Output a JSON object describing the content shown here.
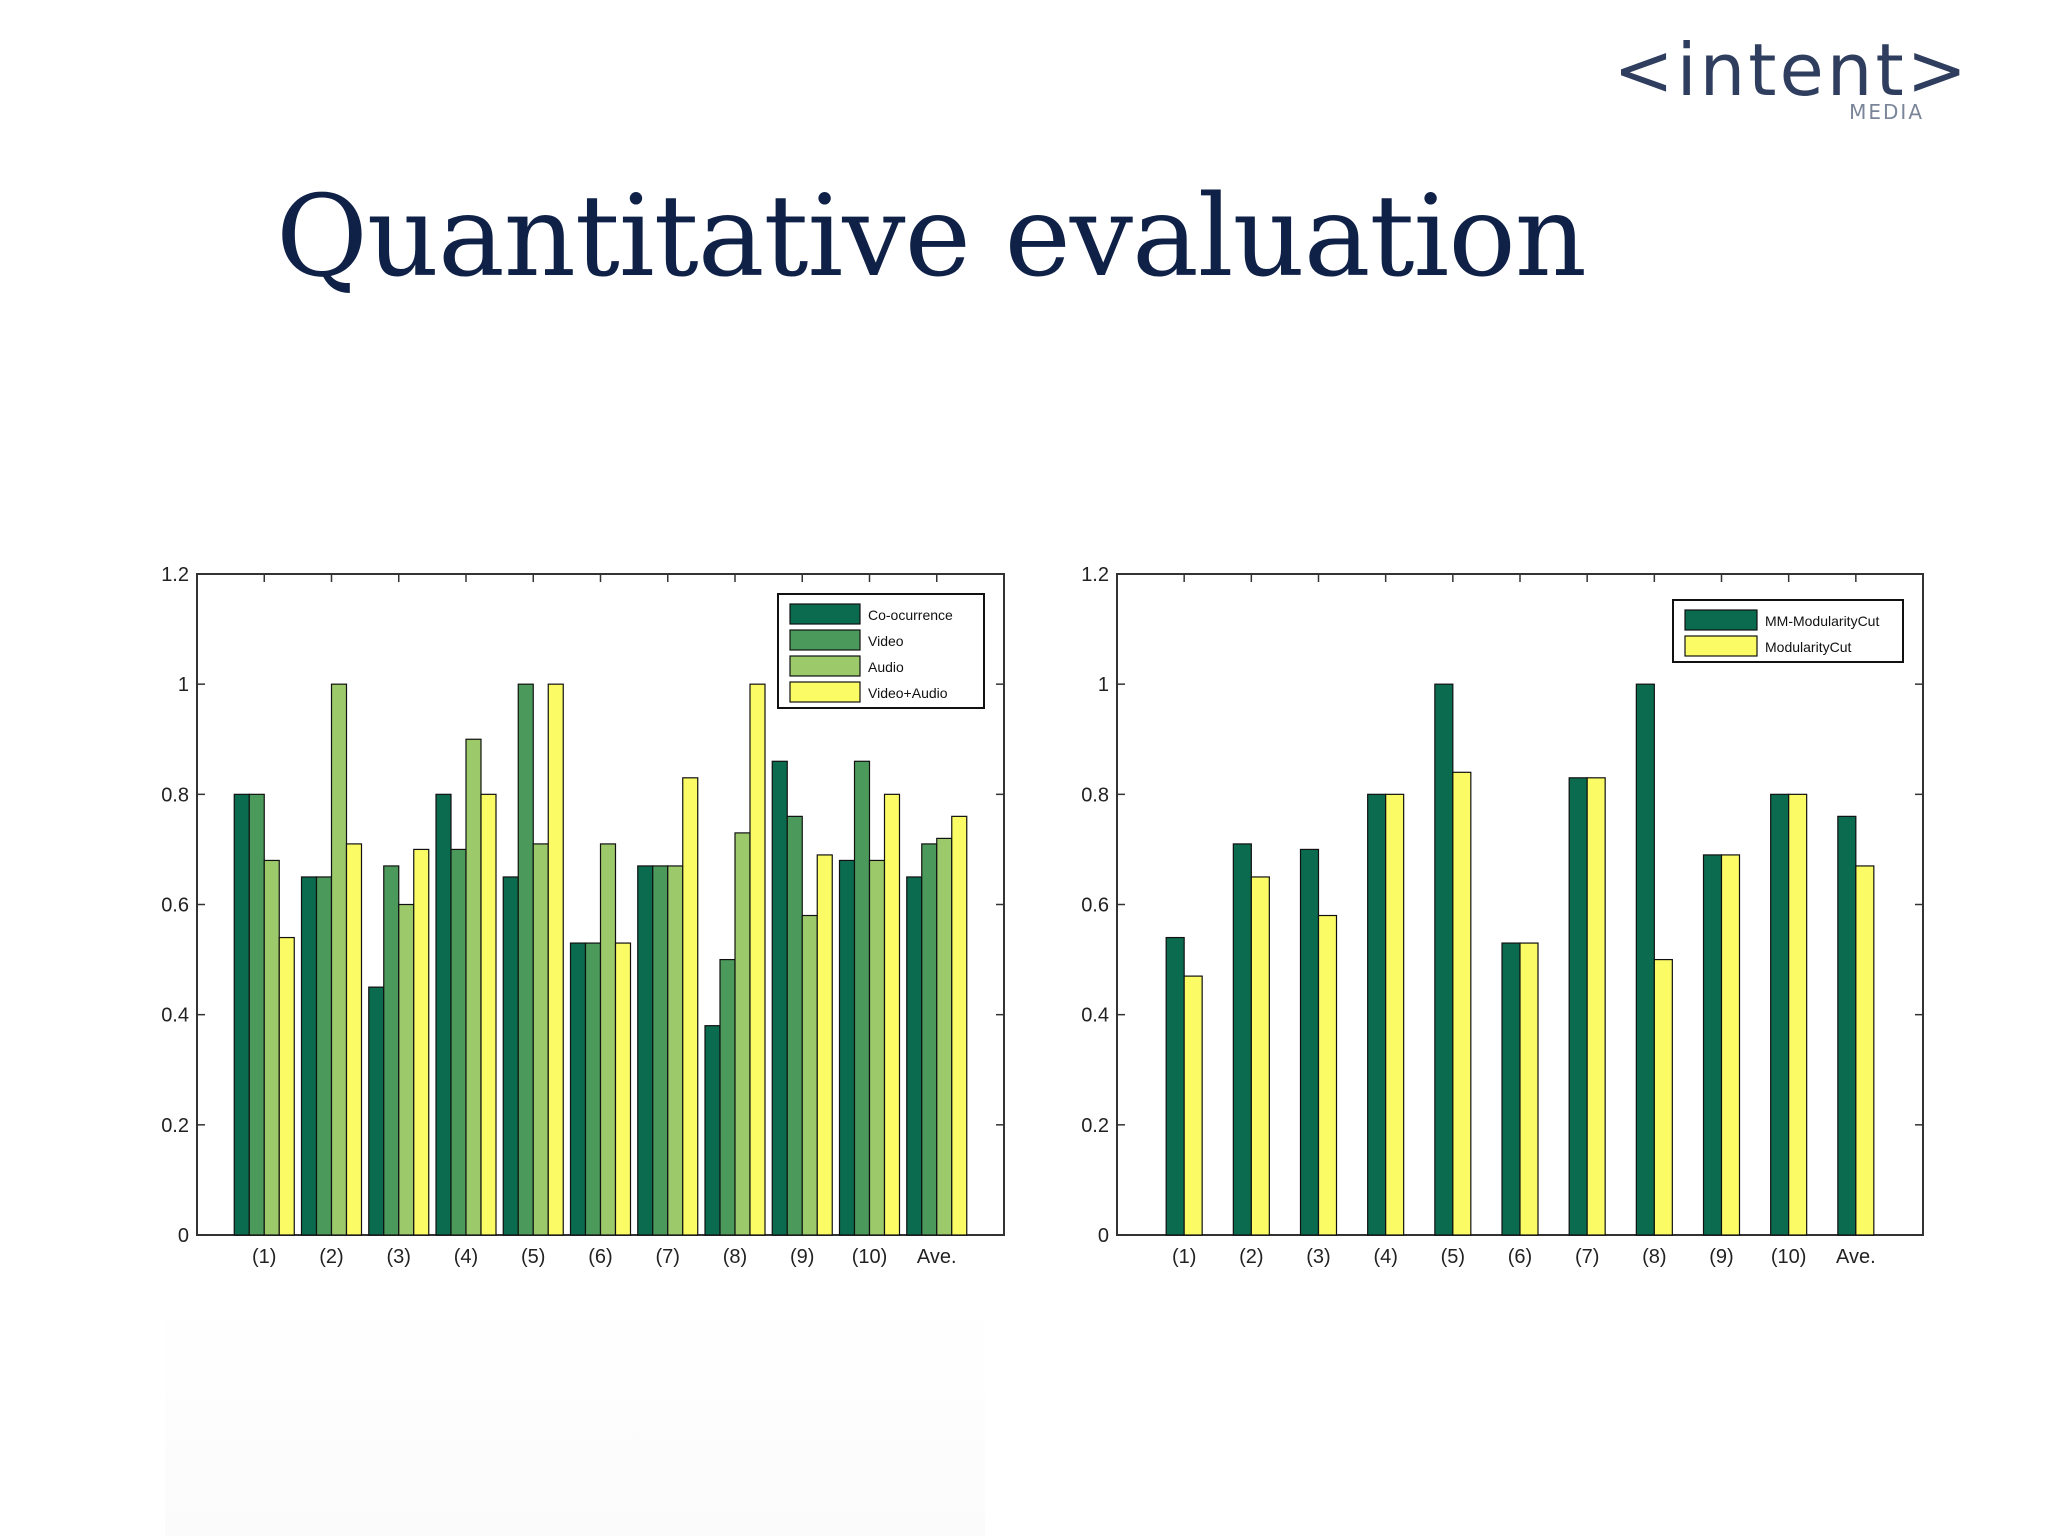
{
  "slide": {
    "title": "Quantitative evaluation"
  },
  "logo": {
    "word": "<intent>",
    "sub": "MEDIA"
  },
  "colors": {
    "co_occurrence": "#0b6b4f",
    "video": "#4b9a5b",
    "audio": "#9cc96a",
    "video_audio": "#fbfb66",
    "mm_modularity": "#0b6b4f",
    "modularity": "#fbfb66"
  },
  "chart_data": [
    {
      "type": "bar",
      "title": "",
      "xlabel": "",
      "ylabel": "",
      "ylim": [
        0,
        1.2
      ],
      "yticks": [
        "0",
        "0.2",
        "0.4",
        "0.6",
        "0.8",
        "1",
        "1.2"
      ],
      "categories": [
        "(1)",
        "(2)",
        "(3)",
        "(4)",
        "(5)",
        "(6)",
        "(7)",
        "(8)",
        "(9)",
        "(10)",
        "Ave."
      ],
      "legend_position": "top-right",
      "series": [
        {
          "name": "Co-ocurrence",
          "color": "#0b6b4f",
          "values": [
            0.8,
            0.65,
            0.45,
            0.8,
            0.65,
            0.53,
            0.67,
            0.38,
            0.86,
            0.68,
            0.65
          ]
        },
        {
          "name": "Video",
          "color": "#4b9a5b",
          "values": [
            0.8,
            0.65,
            0.67,
            0.7,
            1.0,
            0.53,
            0.67,
            0.5,
            0.76,
            0.86,
            0.71
          ]
        },
        {
          "name": "Audio",
          "color": "#9cc96a",
          "values": [
            0.68,
            1.0,
            0.6,
            0.9,
            0.71,
            0.71,
            0.67,
            0.73,
            0.58,
            0.68,
            0.72
          ]
        },
        {
          "name": "Video+Audio",
          "color": "#fbfb66",
          "values": [
            0.54,
            0.71,
            0.7,
            0.8,
            1.0,
            0.53,
            0.83,
            1.0,
            0.69,
            0.8,
            0.76
          ]
        }
      ]
    },
    {
      "type": "bar",
      "title": "",
      "xlabel": "",
      "ylabel": "",
      "ylim": [
        0,
        1.2
      ],
      "yticks": [
        "0",
        "0.2",
        "0.4",
        "0.6",
        "0.8",
        "1",
        "1.2"
      ],
      "categories": [
        "(1)",
        "(2)",
        "(3)",
        "(4)",
        "(5)",
        "(6)",
        "(7)",
        "(8)",
        "(9)",
        "(10)",
        "Ave."
      ],
      "legend_position": "top-right",
      "series": [
        {
          "name": "MM-ModularityCut",
          "color": "#0b6b4f",
          "values": [
            0.54,
            0.71,
            0.7,
            0.8,
            1.0,
            0.53,
            0.83,
            1.0,
            0.69,
            0.8,
            0.76
          ]
        },
        {
          "name": "ModularityCut",
          "color": "#fbfb66",
          "values": [
            0.47,
            0.65,
            0.58,
            0.8,
            0.84,
            0.53,
            0.83,
            0.5,
            0.69,
            0.8,
            0.67
          ]
        }
      ]
    }
  ]
}
